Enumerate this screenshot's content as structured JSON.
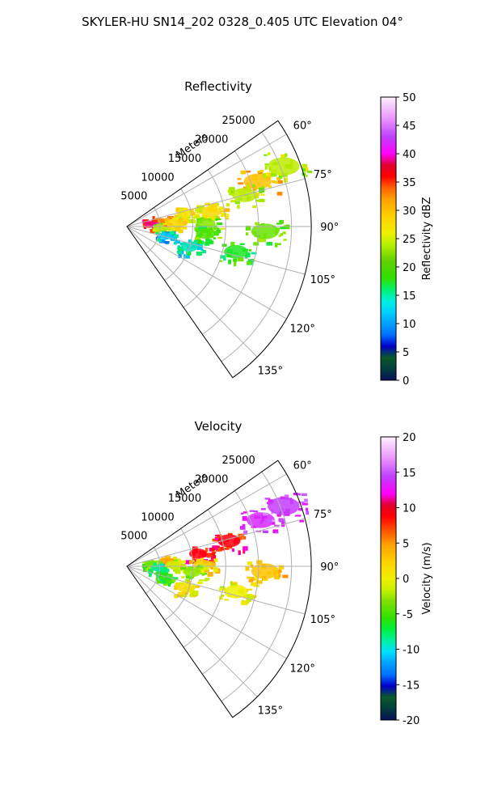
{
  "suptitle": "SKYLER-HU  SN14_202  0328_0.405 UTC Elevation 04°",
  "chart_data": [
    {
      "type": "heatmap",
      "projection": "polar-sector",
      "title": "Reflectivity",
      "radial_label": "Meters",
      "r_ticks": [
        "5000",
        "10000",
        "15000",
        "20000",
        "25000"
      ],
      "r_tick_values": [
        5000,
        10000,
        15000,
        20000,
        25000
      ],
      "rlim": [
        0,
        28000
      ],
      "theta_ticks": [
        "60°",
        "75°",
        "90°",
        "105°",
        "120°",
        "135°"
      ],
      "theta_tick_values": [
        60,
        75,
        90,
        105,
        120,
        135
      ],
      "theta_range": [
        55,
        145
      ],
      "grid": true,
      "colorbar": {
        "label": "Reflectivity dBZ",
        "ticks": [
          "0",
          "5",
          "10",
          "15",
          "20",
          "25",
          "30",
          "35",
          "40",
          "45",
          "50"
        ],
        "range": [
          0,
          50
        ]
      },
      "echoes": [
        {
          "az": 71,
          "r": 21000,
          "value": 30
        },
        {
          "az": 69,
          "r": 25500,
          "value": 24
        },
        {
          "az": 75,
          "r": 18500,
          "value": 24
        },
        {
          "az": 80,
          "r": 13000,
          "value": 28
        },
        {
          "az": 77,
          "r": 9000,
          "value": 27
        },
        {
          "az": 81,
          "r": 5000,
          "value": 33
        },
        {
          "az": 84,
          "r": 3500,
          "value": 38
        },
        {
          "az": 86,
          "r": 7000,
          "value": 28
        },
        {
          "az": 88,
          "r": 12000,
          "value": 22
        },
        {
          "az": 93,
          "r": 5000,
          "value": 24
        },
        {
          "az": 95,
          "r": 12000,
          "value": 20
        },
        {
          "az": 92,
          "r": 21000,
          "value": 21
        },
        {
          "az": 104,
          "r": 6000,
          "value": 12
        },
        {
          "az": 108,
          "r": 10000,
          "value": 14
        },
        {
          "az": 103,
          "r": 17000,
          "value": 18
        }
      ]
    },
    {
      "type": "heatmap",
      "projection": "polar-sector",
      "title": "Velocity",
      "radial_label": "Meters",
      "r_ticks": [
        "5000",
        "10000",
        "15000",
        "20000",
        "25000"
      ],
      "r_tick_values": [
        5000,
        10000,
        15000,
        20000,
        25000
      ],
      "rlim": [
        0,
        28000
      ],
      "theta_ticks": [
        "60°",
        "75°",
        "90°",
        "105°",
        "120°",
        "135°"
      ],
      "theta_tick_values": [
        60,
        75,
        90,
        105,
        120,
        135
      ],
      "theta_range": [
        55,
        145
      ],
      "grid": true,
      "colorbar": {
        "label": "Velocity (m/s)",
        "ticks": [
          "-20",
          "-15",
          "-10",
          "-5",
          "0",
          "5",
          "10",
          "15",
          "20"
        ],
        "range": [
          -20,
          20
        ]
      },
      "echoes": [
        {
          "az": 71,
          "r": 21500,
          "value": 14
        },
        {
          "az": 69,
          "r": 25500,
          "value": 15
        },
        {
          "az": 76,
          "r": 16000,
          "value": 9
        },
        {
          "az": 80,
          "r": 11000,
          "value": 9
        },
        {
          "az": 82,
          "r": 6000,
          "value": 4
        },
        {
          "az": 85,
          "r": 3500,
          "value": -4
        },
        {
          "az": 88,
          "r": 7000,
          "value": -1
        },
        {
          "az": 89,
          "r": 11500,
          "value": 2
        },
        {
          "az": 93,
          "r": 4500,
          "value": -9
        },
        {
          "az": 95,
          "r": 10000,
          "value": -3
        },
        {
          "az": 92,
          "r": 21000,
          "value": 3
        },
        {
          "az": 105,
          "r": 6000,
          "value": -6
        },
        {
          "az": 110,
          "r": 9500,
          "value": 1
        },
        {
          "az": 103,
          "r": 17000,
          "value": 0
        }
      ]
    }
  ]
}
